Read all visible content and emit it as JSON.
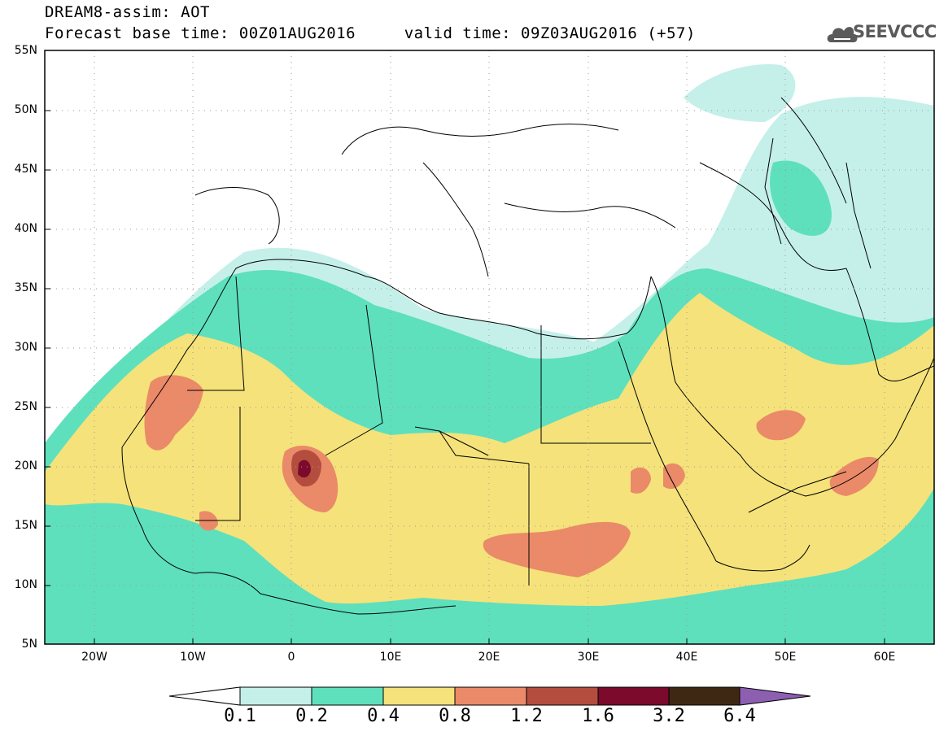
{
  "header": {
    "title_line1": "DREAM8-assim: AOT",
    "title_line2": "Forecast base time: 00Z01AUG2016     valid time: 09Z03AUG2016 (+57)",
    "logo_text": "SEEVCCC"
  },
  "map": {
    "lat_labels": [
      "55N",
      "50N",
      "45N",
      "40N",
      "35N",
      "30N",
      "25N",
      "20N",
      "15N",
      "10N",
      "5N"
    ],
    "lon_labels": [
      "20W",
      "10W",
      "0",
      "10E",
      "20E",
      "30E",
      "40E",
      "50E",
      "60E"
    ],
    "lat_range": [
      5,
      55
    ],
    "lon_range": [
      -25,
      65
    ],
    "field": "AOT (aerosol optical thickness)"
  },
  "colorbar": {
    "levels": [
      "0.1",
      "0.2",
      "0.4",
      "0.8",
      "1.2",
      "1.6",
      "3.2",
      "6.4"
    ],
    "colors": [
      "#ffffff",
      "#c5f0ea",
      "#5ee0bd",
      "#f5e27a",
      "#ea8a68",
      "#b44d3e",
      "#7c0a2c",
      "#3e2814",
      "#8c5fb0"
    ]
  },
  "colors": {
    "ocean_land": "#ffffff",
    "c1": "#c5f0ea",
    "c2": "#5ee0bd",
    "c3": "#f5e27a",
    "c4": "#ea8a68",
    "c5": "#b44d3e",
    "c6": "#7c0a2c"
  }
}
